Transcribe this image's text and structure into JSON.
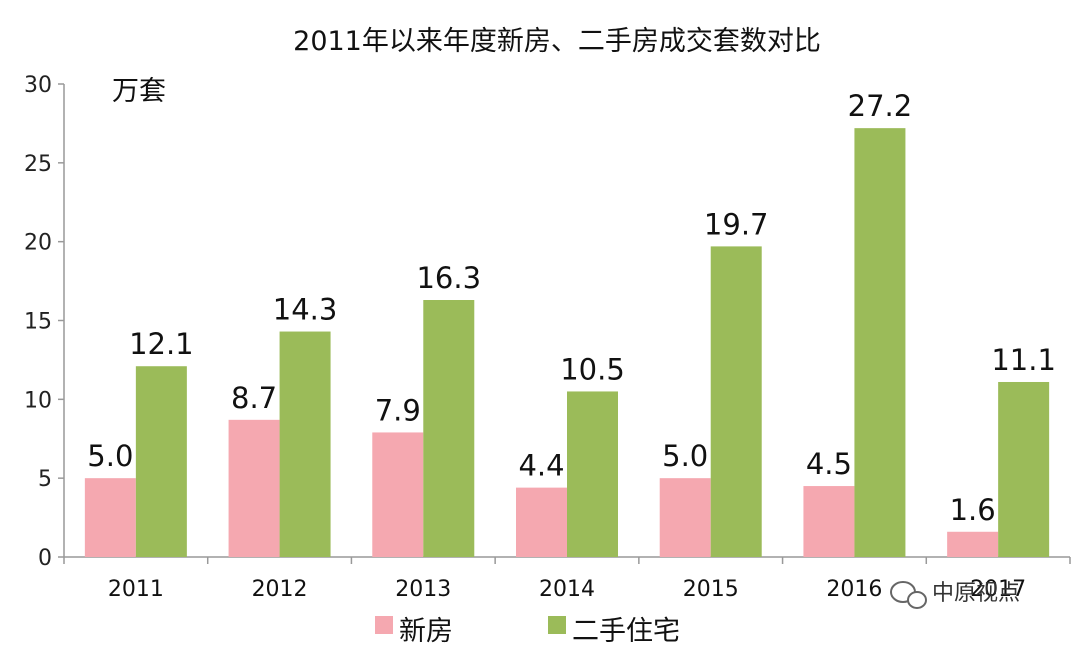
{
  "chart_data": {
    "type": "bar",
    "title": "2011年以来年度新房、二手房成交套数对比",
    "unit_label": "万套",
    "categories": [
      "2011",
      "2012",
      "2013",
      "2014",
      "2015",
      "2016",
      "2017"
    ],
    "series": [
      {
        "name": "新房",
        "values": [
          5.0,
          8.7,
          7.9,
          4.4,
          5.0,
          4.5,
          1.6
        ],
        "color": "#f5a8b0"
      },
      {
        "name": "二手住宅",
        "values": [
          12.1,
          14.3,
          16.3,
          10.5,
          19.7,
          27.2,
          11.1
        ],
        "color": "#9bbb59"
      }
    ],
    "data_labels": [
      [
        "5.0",
        "8.7",
        "7.9",
        "4.4",
        "5.0",
        "4.5",
        "1.6"
      ],
      [
        "12.1",
        "14.3",
        "16.3",
        "10.5",
        "19.7",
        "27.2",
        "11.1"
      ]
    ],
    "ylim": [
      0,
      30
    ],
    "yticks": [
      0,
      5,
      10,
      15,
      20,
      25,
      30
    ],
    "grid": false,
    "legend_position": "bottom-center"
  },
  "watermark": {
    "text": "中原视点",
    "icon": "wechat-icon"
  }
}
